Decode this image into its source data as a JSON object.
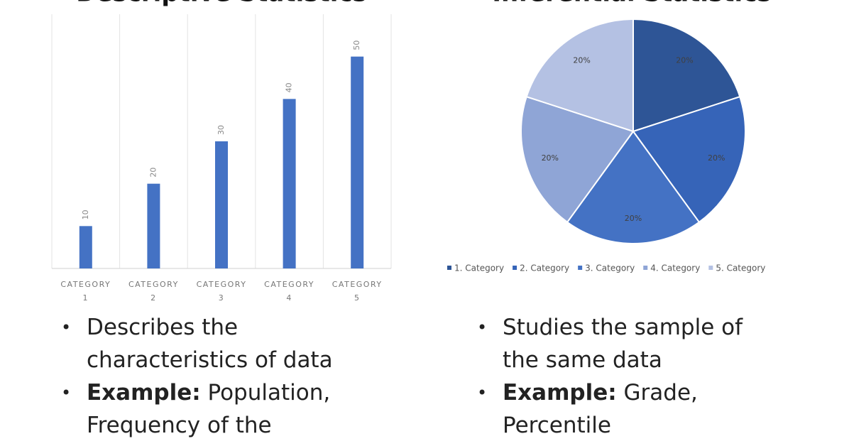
{
  "chart_data": [
    {
      "type": "bar",
      "title": "Descriptive Statistics",
      "categories": [
        [
          "CATEGORY",
          "1"
        ],
        [
          "CATEGORY",
          "2"
        ],
        [
          "CATEGORY",
          "3"
        ],
        [
          "CATEGORY",
          "4"
        ],
        [
          "CATEGORY",
          "5"
        ]
      ],
      "values": [
        10,
        20,
        30,
        40,
        50
      ],
      "color": "#4472c4",
      "ylim": [
        0,
        60
      ]
    },
    {
      "type": "pie",
      "title": "Inferential Statistics",
      "categories": [
        "1. Category",
        "2. Category",
        "3. Category",
        "4. Category",
        "5. Category"
      ],
      "values": [
        20,
        20,
        20,
        20,
        20
      ],
      "value_labels": [
        "20%",
        "20%",
        "20%",
        "20%",
        "20%"
      ],
      "colors": [
        "#2e5596",
        "#3664b8",
        "#4472c4",
        "#8fa5d6",
        "#b4c1e3"
      ]
    }
  ],
  "text_panels": [
    [
      {
        "text": "Describes the characteristics of data"
      },
      {
        "bold": "Example:",
        "text": "Population, Frequency of the"
      }
    ],
    [
      {
        "text": "Studies the sample of the same data"
      },
      {
        "bold": "Example:",
        "text": "Grade, Percentile"
      }
    ]
  ]
}
